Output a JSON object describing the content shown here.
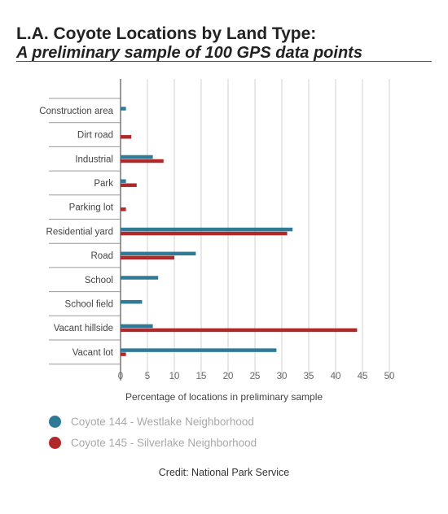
{
  "header": {
    "title": "L.A. Coyote Locations by Land Type:",
    "subtitle": "A preliminary sample of 100 GPS data points"
  },
  "chart_data": {
    "type": "bar",
    "orientation": "horizontal",
    "categories": [
      "Construction area",
      "Dirt road",
      "Industrial",
      "Park",
      "Parking lot",
      "Residential yard",
      "Road",
      "School",
      "School field",
      "Vacant hillside",
      "Vacant lot"
    ],
    "series": [
      {
        "name": "Coyote 144 - Westlake Neighborhood",
        "color": "#2e7a97",
        "values": [
          1,
          0,
          6,
          1,
          0,
          32,
          14,
          7,
          4,
          6,
          29
        ]
      },
      {
        "name": "Coyote 145 - Silverlake Neighborhood",
        "color": "#b0292a",
        "values": [
          0,
          2,
          8,
          3,
          1,
          31,
          10,
          0,
          0,
          44,
          1
        ]
      }
    ],
    "xlabel": "Percentage of locations in preliminary sample",
    "xlim": [
      0,
      50
    ],
    "xticks": [
      0,
      5,
      10,
      15,
      20,
      25,
      30,
      35,
      40,
      45,
      50
    ],
    "grid": true,
    "legend_position": "bottom-left"
  },
  "credit": "Credit: National Park Service"
}
